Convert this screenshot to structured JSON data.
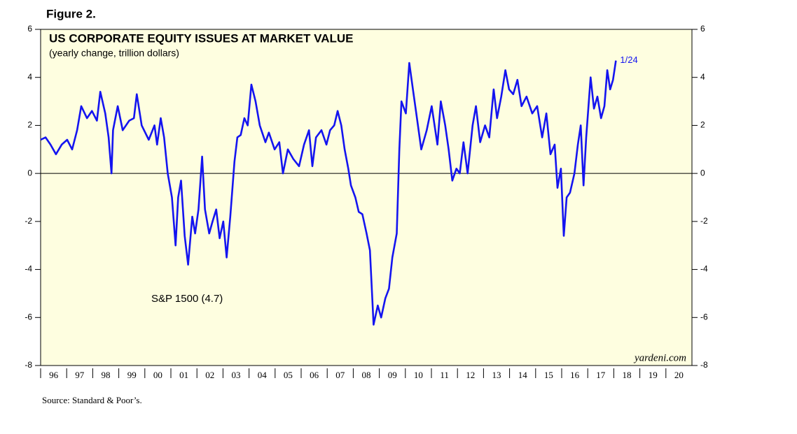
{
  "figure_label": "Figure 2.",
  "source": "Source: Standard & Poor’s.",
  "chart_data": {
    "type": "line",
    "title": "US CORPORATE EQUITY ISSUES AT MARKET VALUE",
    "subtitle": "(yearly change, trillion dollars)",
    "end_label": "1/24",
    "watermark": "yardeni.com",
    "xlim": [
      1996,
      2021
    ],
    "ylim": [
      -8,
      6
    ],
    "yticks": [
      -8,
      -6,
      -4,
      -2,
      0,
      2,
      4,
      6
    ],
    "xticks": [
      {
        "value": 1996,
        "label": "96"
      },
      {
        "value": 1997,
        "label": "97"
      },
      {
        "value": 1998,
        "label": "98"
      },
      {
        "value": 1999,
        "label": "99"
      },
      {
        "value": 2000,
        "label": "00"
      },
      {
        "value": 2001,
        "label": "01"
      },
      {
        "value": 2002,
        "label": "02"
      },
      {
        "value": 2003,
        "label": "03"
      },
      {
        "value": 2004,
        "label": "04"
      },
      {
        "value": 2005,
        "label": "05"
      },
      {
        "value": 2006,
        "label": "06"
      },
      {
        "value": 2007,
        "label": "07"
      },
      {
        "value": 2008,
        "label": "08"
      },
      {
        "value": 2009,
        "label": "09"
      },
      {
        "value": 2010,
        "label": "10"
      },
      {
        "value": 2011,
        "label": "11"
      },
      {
        "value": 2012,
        "label": "12"
      },
      {
        "value": 2013,
        "label": "13"
      },
      {
        "value": 2014,
        "label": "14"
      },
      {
        "value": 2015,
        "label": "15"
      },
      {
        "value": 2016,
        "label": "16"
      },
      {
        "value": 2017,
        "label": "17"
      },
      {
        "value": 2018,
        "label": "18"
      },
      {
        "value": 2019,
        "label": "19"
      },
      {
        "value": 2020,
        "label": "20"
      }
    ],
    "zero_line": true,
    "background": "#fefee0",
    "x": [
      1996.0,
      1996.19,
      1996.38,
      1996.59,
      1996.81,
      1997.02,
      1997.21,
      1997.4,
      1997.56,
      1997.78,
      1997.97,
      1998.16,
      1998.29,
      1998.48,
      1998.61,
      1998.72,
      1998.78,
      1998.96,
      1999.15,
      1999.4,
      1999.58,
      1999.69,
      1999.88,
      2000.15,
      2000.37,
      2000.47,
      2000.61,
      2000.74,
      2000.88,
      2001.04,
      2001.18,
      2001.28,
      2001.39,
      2001.53,
      2001.66,
      2001.82,
      2001.93,
      2002.06,
      2002.2,
      2002.31,
      2002.47,
      2002.6,
      2002.74,
      2002.87,
      2003.01,
      2003.14,
      2003.28,
      2003.44,
      2003.55,
      2003.68,
      2003.82,
      2003.95,
      2004.09,
      2004.25,
      2004.41,
      2004.63,
      2004.76,
      2004.98,
      2005.16,
      2005.3,
      2005.49,
      2005.7,
      2005.92,
      2006.11,
      2006.3,
      2006.43,
      2006.57,
      2006.78,
      2006.97,
      2007.11,
      2007.27,
      2007.4,
      2007.54,
      2007.67,
      2007.81,
      2007.91,
      2008.08,
      2008.21,
      2008.35,
      2008.51,
      2008.64,
      2008.78,
      2008.94,
      2009.07,
      2009.23,
      2009.37,
      2009.5,
      2009.67,
      2009.77,
      2009.85,
      2010.02,
      2010.15,
      2010.29,
      2010.42,
      2010.61,
      2010.82,
      2011.01,
      2011.23,
      2011.36,
      2011.53,
      2011.66,
      2011.8,
      2011.96,
      2012.09,
      2012.23,
      2012.39,
      2012.58,
      2012.71,
      2012.87,
      2013.06,
      2013.22,
      2013.39,
      2013.52,
      2013.68,
      2013.84,
      2013.98,
      2014.14,
      2014.3,
      2014.46,
      2014.65,
      2014.87,
      2015.06,
      2015.25,
      2015.41,
      2015.57,
      2015.73,
      2015.84,
      2015.97,
      2016.08,
      2016.19,
      2016.32,
      2016.49,
      2016.62,
      2016.73,
      2016.84,
      2016.94,
      2017.11,
      2017.24,
      2017.37,
      2017.51,
      2017.64,
      2017.75,
      2017.86,
      2017.97,
      2018.08
    ],
    "series": [
      {
        "name": "S&P 1500 (4.7)",
        "color": "#1414f0",
        "values": [
          1.4,
          1.5,
          1.2,
          0.8,
          1.2,
          1.4,
          1.0,
          1.8,
          2.8,
          2.3,
          2.6,
          2.2,
          3.4,
          2.5,
          1.5,
          0,
          1.8,
          2.8,
          1.8,
          2.2,
          2.3,
          3.3,
          2.0,
          1.4,
          2.0,
          1.2,
          2.3,
          1.5,
          0,
          -1.0,
          -3.0,
          -1.0,
          -0.3,
          -2.6,
          -3.8,
          -1.8,
          -2.5,
          -1.5,
          0.7,
          -1.5,
          -2.5,
          -2.0,
          -1.5,
          -2.7,
          -2.0,
          -3.5,
          -1.8,
          0.5,
          1.5,
          1.6,
          2.3,
          2.0,
          3.7,
          3.0,
          2.0,
          1.3,
          1.7,
          1.0,
          1.3,
          0,
          1.0,
          0.6,
          0.3,
          1.2,
          1.8,
          0.3,
          1.5,
          1.8,
          1.2,
          1.8,
          2.0,
          2.6,
          2.0,
          1.0,
          0.2,
          -0.5,
          -1.0,
          -1.6,
          -1.7,
          -2.5,
          -3.2,
          -6.3,
          -5.5,
          -6.0,
          -5.2,
          -4.8,
          -3.5,
          -2.5,
          1.0,
          3.0,
          2.5,
          4.6,
          3.5,
          2.5,
          1.0,
          1.8,
          2.8,
          1.2,
          3.0,
          2.0,
          1.0,
          -0.3,
          0.2,
          0,
          1.3,
          0,
          2.0,
          2.8,
          1.3,
          2.0,
          1.5,
          3.5,
          2.3,
          3.2,
          4.3,
          3.5,
          3.3,
          3.9,
          2.8,
          3.2,
          2.5,
          2.8,
          1.5,
          2.5,
          0.8,
          1.2,
          -0.6,
          0.2,
          -2.6,
          -1.0,
          -0.8,
          0,
          1.2,
          2.0,
          -0.5,
          1.5,
          4.0,
          2.7,
          3.2,
          2.3,
          2.8,
          4.3,
          3.5,
          3.9,
          4.7
        ]
      }
    ]
  }
}
